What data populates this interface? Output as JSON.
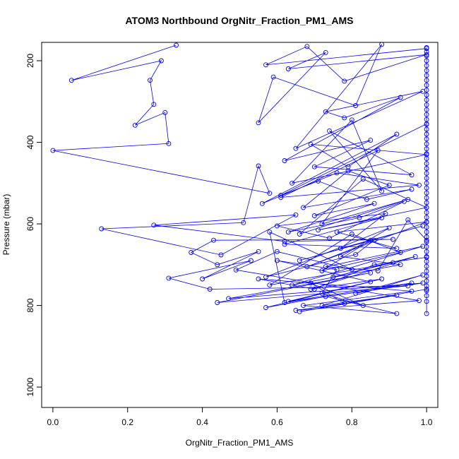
{
  "chart_data": {
    "type": "line",
    "title": "ATOM3 Northbound OrgNitr_Fraction_PM1_AMS",
    "xlabel": "OrgNitr_Fraction_PM1_AMS",
    "ylabel": "Pressure (mbar)",
    "xlim": [
      -0.03,
      1.03
    ],
    "ylim": [
      1050,
      155
    ],
    "y_reversed": true,
    "grid": false,
    "x_ticks": [
      {
        "value": 0.0,
        "label": "0.0"
      },
      {
        "value": 0.2,
        "label": "0.2"
      },
      {
        "value": 0.4,
        "label": "0.4"
      },
      {
        "value": 0.6,
        "label": "0.6"
      },
      {
        "value": 0.8,
        "label": "0.8"
      },
      {
        "value": 1.0,
        "label": "1.0"
      }
    ],
    "y_ticks": [
      {
        "value": 200,
        "label": "200"
      },
      {
        "value": 400,
        "label": "400"
      },
      {
        "value": 600,
        "label": "600"
      },
      {
        "value": 800,
        "label": "800"
      },
      {
        "value": 1000,
        "label": "1000"
      }
    ],
    "colors": {
      "series": "#0000ff",
      "axes": "#000000"
    },
    "series": [
      {
        "x": [
          0.33,
          0.05,
          0.29,
          0.26,
          0.27,
          0.22,
          0.3,
          0.31,
          0.0,
          0.58,
          0.55,
          0.51,
          0.13,
          0.45,
          0.65,
          0.27,
          0.62,
          0.91,
          0.43,
          0.37,
          0.44,
          0.55,
          0.4,
          0.53,
          0.31,
          0.42,
          0.95,
          0.44,
          0.85,
          0.47,
          0.99,
          0.62,
          0.58,
          0.8,
          0.6,
          0.49,
          0.98,
          0.65,
          0.78,
          0.69,
          0.83,
          0.72,
          0.76,
          0.6,
          0.85,
          0.57,
          0.73,
          0.92,
          0.67,
          0.96,
          0.55,
          0.7,
          0.86,
          1.0
        ],
        "y": [
          162,
          248,
          200,
          248,
          307,
          358,
          327,
          403,
          420,
          525,
          458,
          597,
          612,
          676,
          578,
          603,
          643,
          638,
          640,
          670,
          700,
          668,
          735,
          690,
          733,
          760,
          752,
          793,
          720,
          783,
          745,
          793,
          620,
          712,
          668,
          713,
          788,
          812,
          795,
          745,
          800,
          770,
          712,
          690,
          742,
          805,
          778,
          820,
          800,
          765,
          735,
          760,
          700,
          682
        ]
      },
      {
        "x": [
          1.0,
          0.57,
          0.68,
          0.78,
          1.0,
          0.63,
          0.73,
          0.55,
          0.59,
          0.81,
          0.88,
          0.65,
          0.99,
          0.73,
          0.78,
          0.93,
          0.62,
          0.85,
          0.7,
          0.96,
          0.74,
          0.88,
          0.8,
          0.64,
          1.0,
          0.69,
          0.79,
          0.92,
          0.56,
          0.76,
          0.98,
          0.61,
          0.87,
          0.72,
          0.95,
          0.66,
          0.83,
          1.0,
          0.71,
          0.88,
          0.62,
          0.92,
          0.76,
          1.0,
          0.68,
          0.86,
          0.81,
          0.57,
          0.9,
          0.77,
          0.93,
          0.64,
          0.99,
          0.73,
          0.87,
          0.95,
          1.0
        ],
        "y": [
          170,
          210,
          165,
          250,
          185,
          220,
          180,
          352,
          240,
          310,
          160,
          415,
          275,
          325,
          340,
          290,
          445,
          395,
          460,
          480,
          372,
          520,
          345,
          500,
          430,
          405,
          460,
          380,
          550,
          475,
          505,
          535,
          420,
          600,
          540,
          625,
          490,
          560,
          615,
          585,
          650,
          660,
          620,
          595,
          705,
          640,
          675,
          730,
          610,
          680,
          700,
          750,
          655,
          705,
          715,
          590,
          640
        ]
      },
      {
        "x": [
          1.0,
          0.61,
          0.71,
          0.84,
          0.96,
          0.67,
          0.79,
          0.9,
          0.7,
          0.86,
          0.63,
          0.82,
          0.94,
          0.74,
          0.6,
          0.89,
          0.77,
          0.99,
          0.66,
          0.85,
          0.72,
          0.93,
          0.8,
          0.58,
          0.91,
          0.75,
          0.97,
          0.69,
          0.88,
          0.63,
          0.96,
          0.81,
          0.99,
          0.72,
          0.92,
          0.66,
          1.0
        ],
        "y": [
          355,
          530,
          495,
          540,
          515,
          560,
          470,
          505,
          580,
          550,
          620,
          585,
          545,
          635,
          605,
          575,
          660,
          605,
          690,
          640,
          715,
          670,
          625,
          750,
          695,
          730,
          680,
          760,
          735,
          790,
          745,
          770,
          725,
          800,
          775,
          815,
          760
        ]
      }
    ],
    "spine_points": {
      "x": 1.0,
      "y": [
        168,
        178,
        188,
        200,
        212,
        224,
        236,
        248,
        260,
        272,
        284,
        296,
        308,
        320,
        332,
        344,
        356,
        368,
        380,
        392,
        404,
        416,
        428,
        440,
        452,
        464,
        476,
        488,
        500,
        512,
        524,
        536,
        548,
        560,
        572,
        584,
        596,
        608,
        620,
        632,
        644,
        656,
        668,
        680,
        692,
        704,
        716,
        728,
        740,
        752,
        764,
        776,
        790,
        820
      ]
    }
  }
}
